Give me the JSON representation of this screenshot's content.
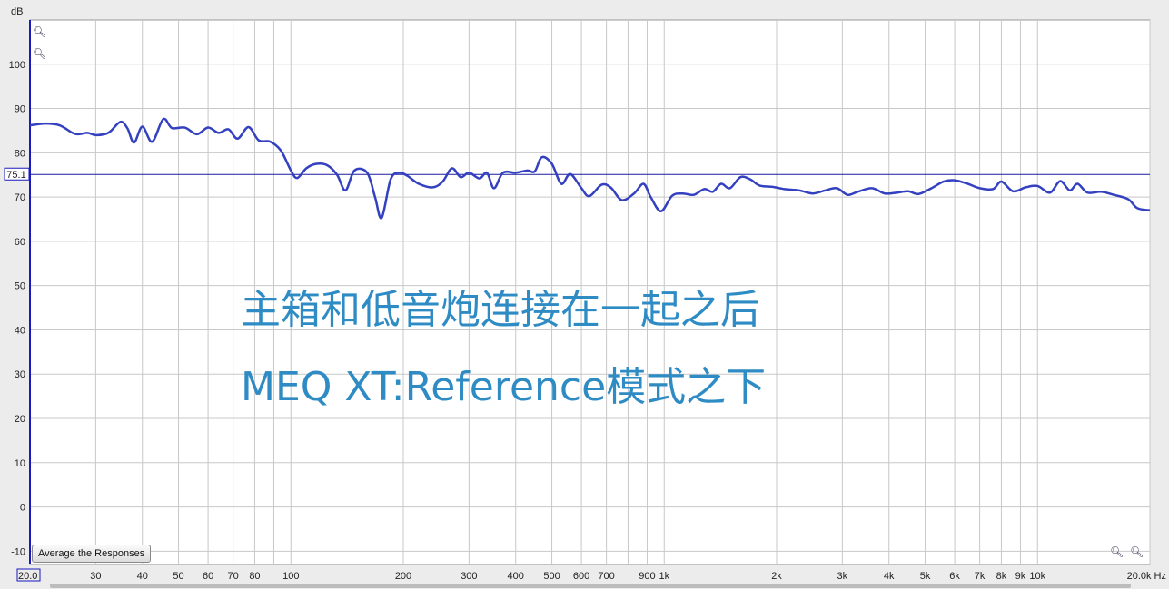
{
  "chart_data": {
    "type": "line",
    "ylabel": "dB",
    "xunit": "Hz",
    "xscale": "log",
    "xlim": [
      20,
      20000
    ],
    "ylim": [
      -13,
      110
    ],
    "grid": true,
    "y_ticks": [
      100,
      90,
      80,
      70,
      60,
      50,
      40,
      30,
      20,
      10,
      0,
      -10
    ],
    "x_tick_labels": [
      {
        "f": 20,
        "label": "20.0"
      },
      {
        "f": 30,
        "label": "30"
      },
      {
        "f": 40,
        "label": "40"
      },
      {
        "f": 50,
        "label": "50"
      },
      {
        "f": 60,
        "label": "60"
      },
      {
        "f": 70,
        "label": "70"
      },
      {
        "f": 80,
        "label": "80"
      },
      {
        "f": 100,
        "label": "100"
      },
      {
        "f": 200,
        "label": "200"
      },
      {
        "f": 300,
        "label": "300"
      },
      {
        "f": 400,
        "label": "400"
      },
      {
        "f": 500,
        "label": "500"
      },
      {
        "f": 600,
        "label": "600"
      },
      {
        "f": 700,
        "label": "700"
      },
      {
        "f": 900,
        "label": "900"
      },
      {
        "f": 1000,
        "label": "1k"
      },
      {
        "f": 2000,
        "label": "2k"
      },
      {
        "f": 3000,
        "label": "3k"
      },
      {
        "f": 4000,
        "label": "4k"
      },
      {
        "f": 5000,
        "label": "5k"
      },
      {
        "f": 6000,
        "label": "6k"
      },
      {
        "f": 7000,
        "label": "7k"
      },
      {
        "f": 8000,
        "label": "8k"
      },
      {
        "f": 9000,
        "label": "9k"
      },
      {
        "f": 10000,
        "label": "10k"
      },
      {
        "f": 20000,
        "label": "20.0k Hz"
      }
    ],
    "reference_line": {
      "value": 75.1,
      "label": "75.1"
    },
    "series": [
      {
        "color": "#3340c0",
        "x": [
          20,
          22,
          24,
          26,
          27,
          28.5,
          30,
          32,
          33,
          35,
          36.5,
          38,
          40,
          42.5,
          45.5,
          48,
          52,
          56,
          60,
          64,
          68,
          72,
          77,
          82,
          88,
          94,
          100,
          104,
          110,
          117,
          125,
          133,
          140,
          148,
          160,
          168,
          175,
          185,
          195,
          205,
          220,
          240,
          255,
          270,
          285,
          300,
          320,
          335,
          350,
          370,
          400,
          430,
          450,
          470,
          500,
          530,
          560,
          600,
          630,
          680,
          720,
          770,
          830,
          880,
          920,
          980,
          1050,
          1120,
          1200,
          1280,
          1350,
          1420,
          1500,
          1600,
          1700,
          1800,
          1950,
          2100,
          2300,
          2500,
          2700,
          2900,
          3100,
          3300,
          3600,
          3900,
          4200,
          4500,
          4800,
          5200,
          5600,
          6000,
          6500,
          7000,
          7600,
          8000,
          8600,
          9300,
          10000,
          10800,
          11500,
          12200,
          12800,
          13600,
          14800,
          16000,
          17500,
          18500,
          20000
        ],
        "y": [
          86.2,
          86.6,
          86.2,
          84.5,
          84.2,
          84.5,
          84.0,
          84.3,
          85,
          87,
          85.5,
          82.3,
          85.9,
          82.5,
          87.6,
          85.6,
          85.7,
          84.2,
          85.7,
          84.5,
          85.3,
          83.2,
          85.8,
          82.8,
          82.5,
          80.5,
          76,
          74.3,
          76.5,
          77.5,
          77.2,
          75,
          71.5,
          76,
          75.5,
          70,
          65.3,
          74,
          75.5,
          74.8,
          73,
          72.2,
          73.5,
          76.5,
          74.5,
          75.5,
          74.2,
          75.5,
          72,
          75.5,
          75.5,
          76,
          75.8,
          79,
          77.5,
          73,
          75.2,
          72,
          70.2,
          72.8,
          72.1,
          69.3,
          70.8,
          73,
          70,
          66.8,
          70.3,
          70.8,
          70.5,
          71.8,
          71.2,
          73,
          72,
          74.5,
          74,
          72.6,
          72.3,
          71.8,
          71.5,
          70.8,
          71.5,
          72,
          70.5,
          71.2,
          72,
          70.8,
          71,
          71.3,
          70.7,
          72,
          73.5,
          73.8,
          73,
          72,
          71.8,
          73.5,
          71.3,
          72.2,
          72.5,
          71,
          73.6,
          71.5,
          73,
          71,
          71.2,
          70.5,
          69.5,
          67.5,
          67
        ]
      }
    ],
    "annotations": [
      "主箱和低音炮连接在一起之后",
      "MEQ XT:Reference模式之下"
    ]
  },
  "controls": {
    "average_button": "Average the Responses",
    "zoom_icons": [
      "zoom-in-icon",
      "zoom-out-icon"
    ]
  },
  "colors": {
    "trace": "#3340c0",
    "reference": "#1a1aa0",
    "annotation": "#2e8bc4",
    "grid": "#c8c8c8"
  }
}
